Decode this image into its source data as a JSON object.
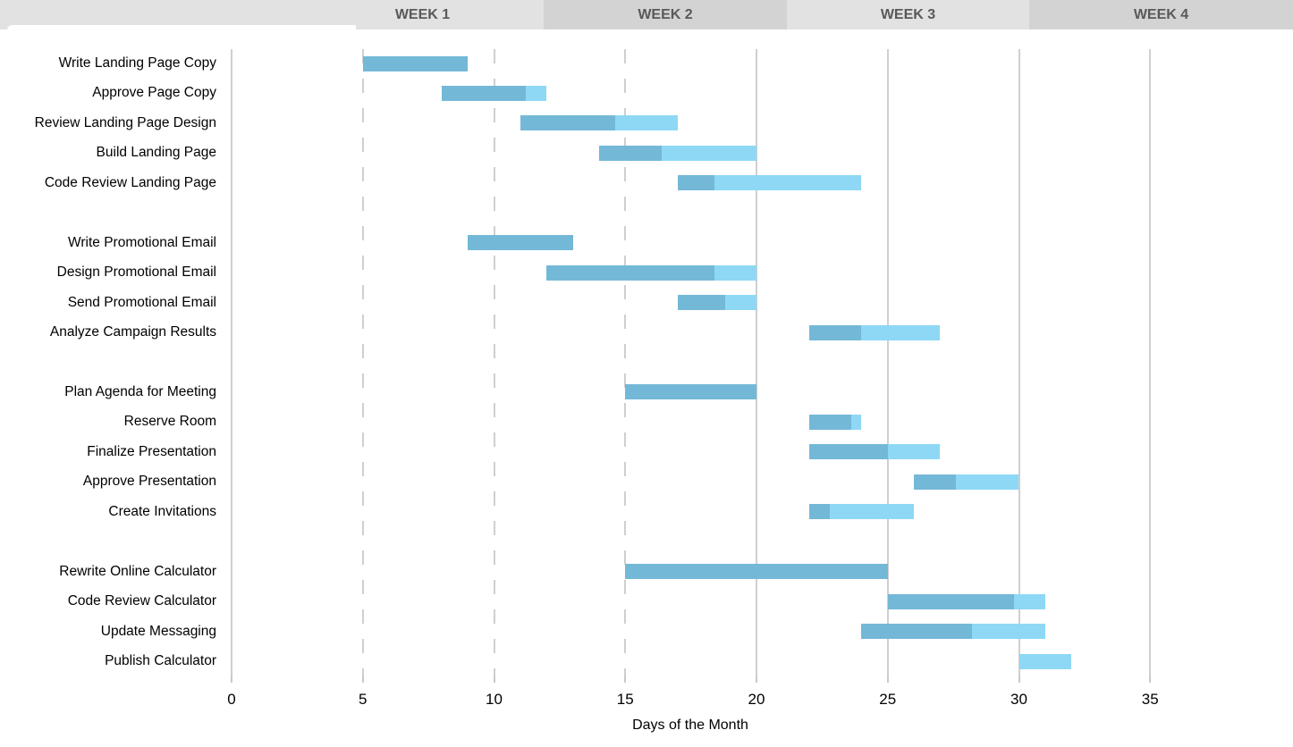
{
  "chart_data": {
    "type": "bar",
    "subtype": "gantt",
    "title": "",
    "xlabel": "Days of the Month",
    "ylabel": "",
    "x_ticks": [
      0,
      5,
      10,
      15,
      20,
      25,
      30,
      35
    ],
    "xlim": [
      0,
      40.5
    ],
    "grid": "vertical",
    "dashed_gridlines_at": [
      5,
      10,
      15
    ],
    "week_headers": [
      "WEEK 1",
      "WEEK 2",
      "WEEK 3",
      "WEEK 4"
    ],
    "series": [
      {
        "name": "complete",
        "color": "#74B8D7"
      },
      {
        "name": "remaining",
        "color": "#8ED8F6"
      }
    ],
    "tasks": [
      {
        "name": "Write Landing Page Copy",
        "group": 1,
        "start_day": 5,
        "end_day": 9,
        "percent_complete": 100
      },
      {
        "name": "Approve Page Copy",
        "group": 1,
        "start_day": 8,
        "end_day": 12,
        "percent_complete": 80
      },
      {
        "name": "Review Landing Page Design",
        "group": 1,
        "start_day": 11,
        "end_day": 17,
        "percent_complete": 60
      },
      {
        "name": "Build Landing Page",
        "group": 1,
        "start_day": 14,
        "end_day": 20,
        "percent_complete": 40
      },
      {
        "name": "Code Review Landing Page",
        "group": 1,
        "start_day": 17,
        "end_day": 24,
        "percent_complete": 20
      },
      {
        "name": "Write Promotional Email",
        "group": 2,
        "start_day": 9,
        "end_day": 13,
        "percent_complete": 100
      },
      {
        "name": "Design Promotional Email",
        "group": 2,
        "start_day": 12,
        "end_day": 20,
        "percent_complete": 80
      },
      {
        "name": "Send Promotional Email",
        "group": 2,
        "start_day": 17,
        "end_day": 20,
        "percent_complete": 60
      },
      {
        "name": "Analyze Campaign Results",
        "group": 2,
        "start_day": 22,
        "end_day": 27,
        "percent_complete": 40
      },
      {
        "name": "Plan Agenda for Meeting",
        "group": 3,
        "start_day": 15,
        "end_day": 20,
        "percent_complete": 100
      },
      {
        "name": "Reserve Room",
        "group": 3,
        "start_day": 22,
        "end_day": 24,
        "percent_complete": 80
      },
      {
        "name": "Finalize Presentation",
        "group": 3,
        "start_day": 22,
        "end_day": 27,
        "percent_complete": 60
      },
      {
        "name": "Approve Presentation",
        "group": 3,
        "start_day": 26,
        "end_day": 30,
        "percent_complete": 40
      },
      {
        "name": "Create Invitations",
        "group": 3,
        "start_day": 22,
        "end_day": 26,
        "percent_complete": 20
      },
      {
        "name": "Rewrite Online Calculator",
        "group": 4,
        "start_day": 15,
        "end_day": 25,
        "percent_complete": 100
      },
      {
        "name": "Code Review Calculator",
        "group": 4,
        "start_day": 25,
        "end_day": 31,
        "percent_complete": 80
      },
      {
        "name": "Update Messaging",
        "group": 4,
        "start_day": 24,
        "end_day": 31,
        "percent_complete": 60
      },
      {
        "name": "Publish Calculator",
        "group": 4,
        "start_day": 30,
        "end_day": 32,
        "percent_complete": 0
      }
    ],
    "colors": {
      "bar_complete": "#74B8D7",
      "bar_remaining": "#8ED8F6",
      "band_light": "#E2E2E2",
      "band_dark": "#D3D3D3",
      "band_text": "#595959",
      "gridline": "#CFCFCF",
      "axis_text": "#000000"
    }
  }
}
